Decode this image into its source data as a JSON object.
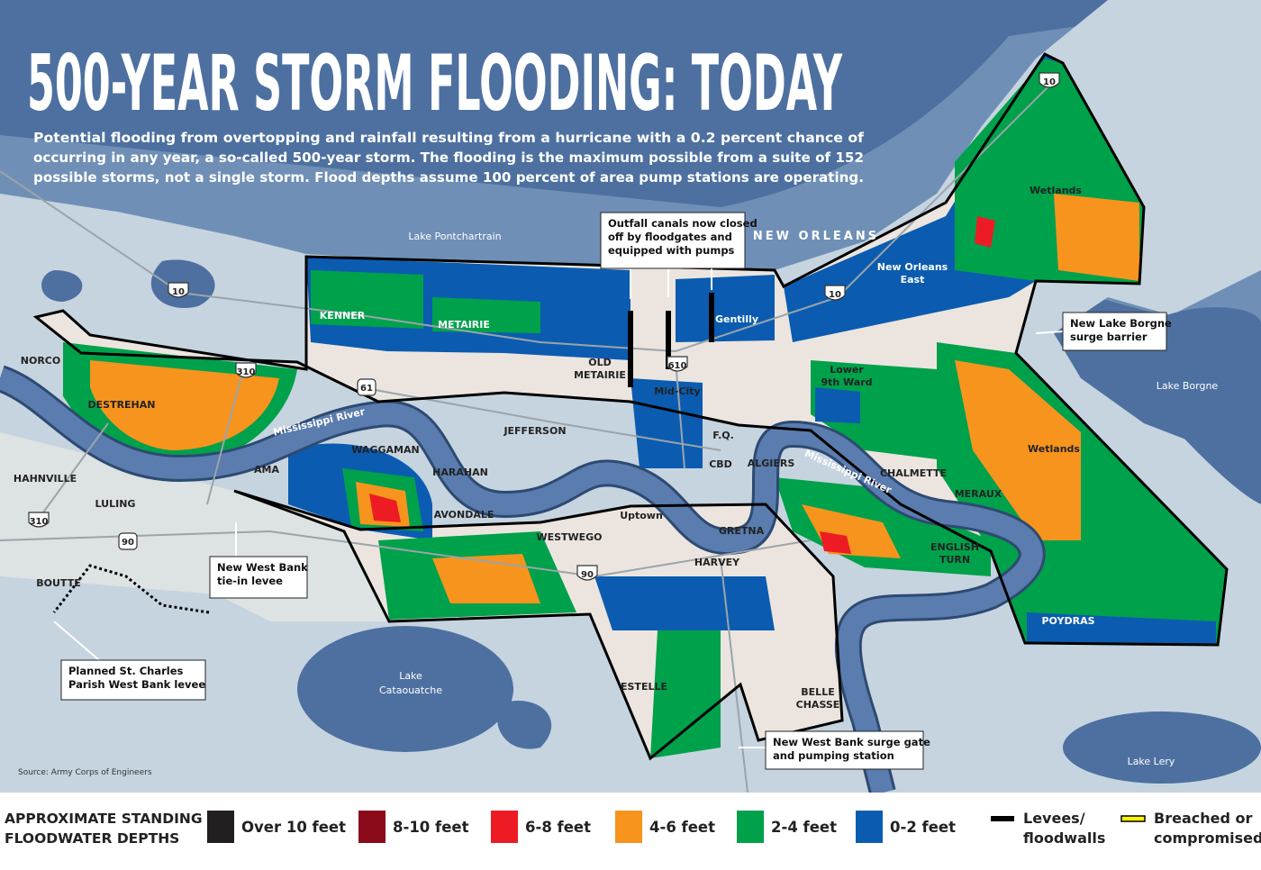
{
  "title": "500-YEAR STORM FLOODING: TODAY",
  "description": [
    "Potential flooding from overtopping and rainfall resulting from a hurricane with a 0.2 percent chance of",
    "occurring in any year, a so-called 500-year storm. The flooding is the maximum possible from a suite of 152",
    "possible storms, not a single storm. Flood depths assume 100 percent of area pump stations are operating."
  ],
  "water_labels": [
    [
      "Lake Pontchartrain"
    ],
    [
      "Lake Borgne"
    ],
    [
      "Lake",
      "Cataouatche"
    ],
    [
      "Lake Lery"
    ],
    [
      "Mississippi River"
    ],
    [
      "Mississippi River"
    ]
  ],
  "place_labels": [
    [
      "KENNER"
    ],
    [
      "METAIRIE"
    ],
    [
      "OLD",
      "METAIRIE"
    ],
    [
      "Mid-City"
    ],
    [
      "Gentilly"
    ],
    [
      "NEW ORLEANS"
    ],
    [
      "New Orleans",
      "East"
    ],
    [
      "Wetlands"
    ],
    [
      "Lower",
      "9th Ward"
    ],
    [
      "Wetlands"
    ],
    [
      "NORCO"
    ],
    [
      "DESTREHAN"
    ],
    [
      "JEFFERSON"
    ],
    [
      "F.Q."
    ],
    [
      "CBD"
    ],
    [
      "ALGIERS"
    ],
    [
      "CHALMETTE"
    ],
    [
      "MERAUX"
    ],
    [
      "WAGGAMAN"
    ],
    [
      "HARAHAN"
    ],
    [
      "AMA"
    ],
    [
      "HAHNVILLE"
    ],
    [
      "LULING"
    ],
    [
      "AVONDALE"
    ],
    [
      "Uptown"
    ],
    [
      "GRETNA"
    ],
    [
      "WESTWEGO"
    ],
    [
      "HARVEY"
    ],
    [
      "ENGLISH",
      "TURN"
    ],
    [
      "BOUTTE"
    ],
    [
      "POYDRAS"
    ],
    [
      "ESTELLE"
    ],
    [
      "BELLE",
      "CHASSE"
    ]
  ],
  "callouts": [
    [
      "Outfall canals now closed",
      "off by floodgates and",
      "equipped with pumps"
    ],
    [
      "New Lake Borgne",
      "surge barrier"
    ],
    [
      "New West Bank",
      "tie-in levee"
    ],
    [
      "Planned St. Charles",
      "Parish West Bank levee"
    ],
    [
      "New West Bank surge gate",
      "and pumping station"
    ]
  ],
  "shields": [
    "10",
    "10",
    "10",
    "310",
    "310",
    "610",
    "90",
    "61",
    "90"
  ],
  "source": "Source: Army Corps of Engineers",
  "legend": {
    "title": [
      "APPROXIMATE STANDING",
      "FLOODWATER DEPTHS"
    ],
    "items": [
      {
        "label": [
          "Over 10 feet"
        ],
        "color": "#231f20"
      },
      {
        "label": [
          "8-10 feet"
        ],
        "color": "#8b0a1a"
      },
      {
        "label": [
          "6-8 feet"
        ],
        "color": "#ed1c24"
      },
      {
        "label": [
          "4-6 feet"
        ],
        "color": "#f7941d"
      },
      {
        "label": [
          "2-4 feet"
        ],
        "color": "#00a14b"
      },
      {
        "label": [
          "0-2 feet"
        ],
        "color": "#0b5cb0"
      },
      {
        "label": [
          "Levees/",
          "floodwalls"
        ],
        "color": "#000000"
      },
      {
        "label": [
          "Breached or",
          "compromised"
        ],
        "color": "#fff200"
      }
    ]
  }
}
